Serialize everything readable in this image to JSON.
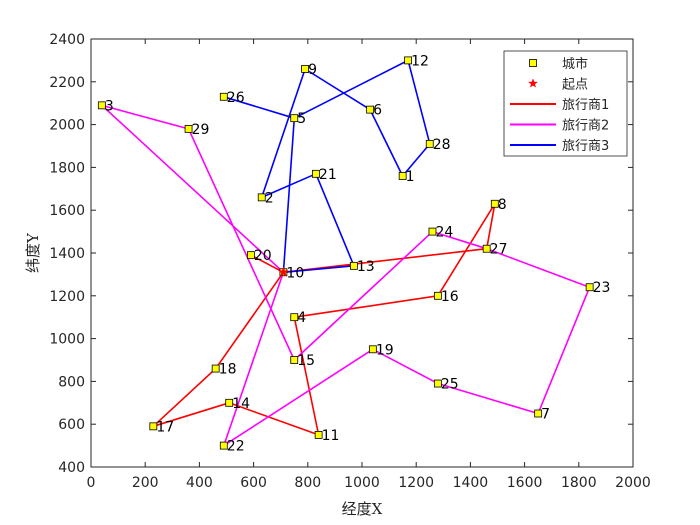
{
  "chart_data": {
    "type": "scatter",
    "xlabel": "经度X",
    "ylabel": "纬度Y",
    "xlim": [
      0,
      2000
    ],
    "ylim": [
      400,
      2400
    ],
    "xticks": [
      0,
      200,
      400,
      600,
      800,
      1000,
      1200,
      1400,
      1600,
      1800,
      2000
    ],
    "yticks": [
      400,
      600,
      800,
      1000,
      1200,
      1400,
      1600,
      1800,
      2000,
      2200,
      2400
    ],
    "grid": false,
    "legend_position": "top-right",
    "legend": [
      {
        "label": "城市",
        "kind": "marker-square",
        "color": "#ffff00"
      },
      {
        "label": "起点",
        "kind": "marker-star",
        "color": "#ff0000"
      },
      {
        "label": "旅行商1",
        "kind": "line",
        "color": "#ff0000"
      },
      {
        "label": "旅行商2",
        "kind": "line",
        "color": "#ff00ff"
      },
      {
        "label": "旅行商3",
        "kind": "line",
        "color": "#0000ff"
      }
    ],
    "start": {
      "x": 710,
      "y": 1310
    },
    "cities": [
      {
        "id": "1",
        "x": 1150,
        "y": 1760
      },
      {
        "id": "2",
        "x": 630,
        "y": 1660
      },
      {
        "id": "3",
        "x": 40,
        "y": 2090
      },
      {
        "id": "4",
        "x": 750,
        "y": 1100
      },
      {
        "id": "5",
        "x": 750,
        "y": 2030
      },
      {
        "id": "6",
        "x": 1030,
        "y": 2070
      },
      {
        "id": "7",
        "x": 1650,
        "y": 650
      },
      {
        "id": "8",
        "x": 1490,
        "y": 1630
      },
      {
        "id": "9",
        "x": 790,
        "y": 2260
      },
      {
        "id": "10",
        "x": 710,
        "y": 1310
      },
      {
        "id": "11",
        "x": 840,
        "y": 550
      },
      {
        "id": "12",
        "x": 1170,
        "y": 2300
      },
      {
        "id": "13",
        "x": 970,
        "y": 1340
      },
      {
        "id": "14",
        "x": 510,
        "y": 700
      },
      {
        "id": "15",
        "x": 750,
        "y": 900
      },
      {
        "id": "16",
        "x": 1280,
        "y": 1200
      },
      {
        "id": "17",
        "x": 230,
        "y": 590
      },
      {
        "id": "18",
        "x": 460,
        "y": 860
      },
      {
        "id": "19",
        "x": 1040,
        "y": 950
      },
      {
        "id": "20",
        "x": 590,
        "y": 1390
      },
      {
        "id": "21",
        "x": 830,
        "y": 1770
      },
      {
        "id": "22",
        "x": 490,
        "y": 500
      },
      {
        "id": "23",
        "x": 1840,
        "y": 1240
      },
      {
        "id": "24",
        "x": 1260,
        "y": 1500
      },
      {
        "id": "25",
        "x": 1280,
        "y": 790
      },
      {
        "id": "26",
        "x": 490,
        "y": 2130
      },
      {
        "id": "27",
        "x": 1460,
        "y": 1420
      },
      {
        "id": "28",
        "x": 1250,
        "y": 1910
      },
      {
        "id": "29",
        "x": 360,
        "y": 1980
      }
    ],
    "series": [
      {
        "name": "旅行商1",
        "color": "#ff0000",
        "route": [
          "10",
          "20",
          "10",
          "18",
          "17",
          "14",
          "11",
          "4",
          "16",
          "8",
          "27",
          "10"
        ]
      },
      {
        "name": "旅行商2",
        "color": "#ff00ff",
        "route": [
          "10",
          "3",
          "29",
          "15",
          "24",
          "27",
          "23",
          "7",
          "25",
          "19",
          "22",
          "10"
        ]
      },
      {
        "name": "旅行商3",
        "color": "#0000ff",
        "route": [
          "10",
          "13",
          "21",
          "2",
          "9",
          "6",
          "1",
          "28",
          "12",
          "5",
          "26",
          "5",
          "10"
        ]
      }
    ]
  }
}
